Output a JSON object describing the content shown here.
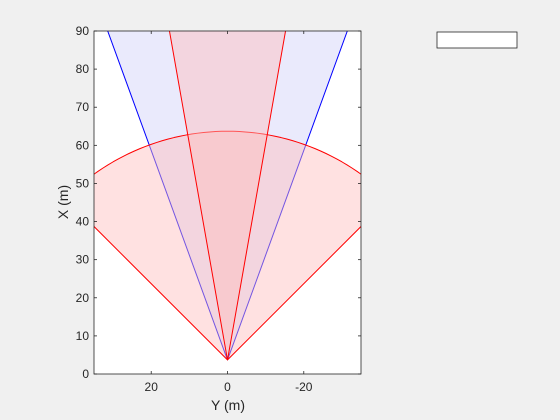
{
  "chart_data": {
    "type": "area",
    "title": "",
    "xlabel": "Y (m)",
    "ylabel": "X (m)",
    "xlim": [
      35,
      -35
    ],
    "ylim": [
      0,
      90
    ],
    "x_direction": "reversed",
    "xticks": [
      20,
      0,
      -20
    ],
    "yticks": [
      0,
      10,
      20,
      30,
      40,
      50,
      60,
      70,
      80,
      90
    ],
    "grid": false,
    "legend": {
      "position": "top-right",
      "entries": []
    },
    "series": [
      {
        "shape": "sector",
        "color": "#0000ff",
        "fill": "#dcdcfa",
        "fill_opacity": 0.6,
        "vertex": [
          0,
          3.7
        ],
        "radius": 150,
        "half_angle_deg": 20
      },
      {
        "shape": "sector",
        "color": "#ff0000",
        "fill": "#ffbcbc",
        "fill_opacity": 0.45,
        "vertex": [
          0,
          3.7
        ],
        "radius": 60,
        "half_angle_deg": 45
      },
      {
        "shape": "sector",
        "color": "#ff0000",
        "fill": "#ffbcbc",
        "fill_opacity": 0.45,
        "vertex": [
          0,
          3.7
        ],
        "radius": 150,
        "half_angle_deg": 10
      }
    ]
  }
}
